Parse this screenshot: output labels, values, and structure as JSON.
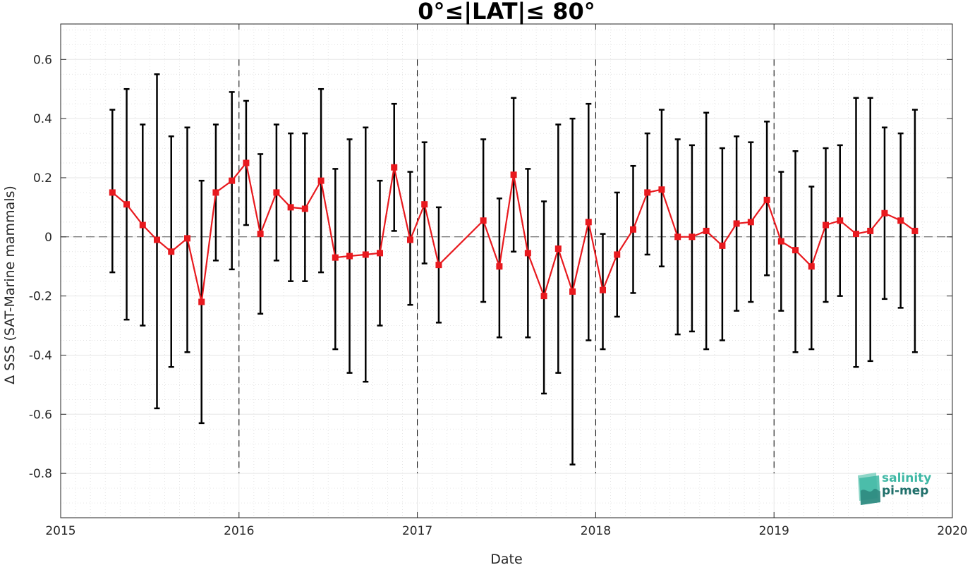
{
  "chart_data": {
    "type": "line",
    "title": "0°≤|LAT|≤ 80°",
    "xlabel": "Date",
    "ylabel": "Δ SSS (SAT-Marine mammals)",
    "xlim": [
      2015,
      2020
    ],
    "ylim": [
      -0.95,
      0.72
    ],
    "xticks": [
      2015,
      2016,
      2017,
      2018,
      2019,
      2020
    ],
    "xtick_labels": [
      "2015",
      "2016",
      "2017",
      "2018",
      "2019",
      "2020"
    ],
    "yticks": [
      0.6,
      0.4,
      0.2,
      0,
      -0.2,
      -0.4,
      -0.6,
      -0.8
    ],
    "ytick_labels": [
      "0.6",
      "0.4",
      "0.2",
      "0",
      "-0.2",
      "-0.4",
      "-0.6",
      "-0.8"
    ],
    "grid": true,
    "year_boundaries": [
      2016,
      2017,
      2018,
      2019
    ],
    "zero_line": 0,
    "series": [
      {
        "color": "#e8191e",
        "error_bar_color": "#000000",
        "marker": "square",
        "x": [
          2015.29,
          2015.37,
          2015.46,
          2015.54,
          2015.62,
          2015.71,
          2015.79,
          2015.87,
          2015.96,
          2016.04,
          2016.12,
          2016.21,
          2016.29,
          2016.37,
          2016.46,
          2016.54,
          2016.62,
          2016.71,
          2016.79,
          2016.87,
          2016.96,
          2017.04,
          2017.12,
          2017.37,
          2017.46,
          2017.54,
          2017.62,
          2017.71,
          2017.79,
          2017.87,
          2017.96,
          2018.04,
          2018.12,
          2018.21,
          2018.29,
          2018.37,
          2018.46,
          2018.54,
          2018.62,
          2018.71,
          2018.79,
          2018.87,
          2018.96,
          2019.04,
          2019.12,
          2019.21,
          2019.29,
          2019.37,
          2019.46,
          2019.54,
          2019.62,
          2019.71,
          2019.79
        ],
        "y": [
          0.15,
          0.11,
          0.04,
          -0.01,
          -0.05,
          -0.005,
          -0.22,
          0.15,
          0.19,
          0.25,
          0.01,
          0.15,
          0.1,
          0.095,
          0.19,
          -0.07,
          -0.065,
          -0.06,
          -0.055,
          0.235,
          -0.01,
          0.11,
          -0.095,
          0.055,
          -0.1,
          0.21,
          -0.055,
          -0.2,
          -0.04,
          -0.185,
          0.05,
          -0.18,
          -0.06,
          0.025,
          0.15,
          0.16,
          0.0,
          0.0,
          0.02,
          -0.03,
          0.045,
          0.05,
          0.125,
          -0.015,
          -0.045,
          -0.1,
          0.04,
          0.055,
          0.01,
          0.02,
          0.08,
          0.055,
          0.02
        ],
        "y_upper": [
          0.43,
          0.5,
          0.38,
          0.55,
          0.34,
          0.37,
          0.19,
          0.38,
          0.49,
          0.46,
          0.28,
          0.38,
          0.35,
          0.35,
          0.5,
          0.23,
          0.33,
          0.37,
          0.19,
          0.45,
          0.22,
          0.32,
          0.1,
          0.33,
          0.13,
          0.47,
          0.23,
          0.12,
          0.38,
          0.4,
          0.45,
          0.01,
          0.15,
          0.24,
          0.35,
          0.43,
          0.33,
          0.31,
          0.42,
          0.3,
          0.34,
          0.32,
          0.39,
          0.22,
          0.29,
          0.17,
          0.3,
          0.31,
          0.47,
          0.47,
          0.37,
          0.35,
          0.43
        ],
        "y_lower": [
          -0.12,
          -0.28,
          -0.3,
          -0.58,
          -0.44,
          -0.39,
          -0.63,
          -0.08,
          -0.11,
          0.04,
          -0.26,
          -0.08,
          -0.15,
          -0.15,
          -0.12,
          -0.38,
          -0.46,
          -0.49,
          -0.3,
          0.02,
          -0.23,
          -0.09,
          -0.29,
          -0.22,
          -0.34,
          -0.05,
          -0.34,
          -0.53,
          -0.46,
          -0.77,
          -0.35,
          -0.38,
          -0.27,
          -0.19,
          -0.06,
          -0.1,
          -0.33,
          -0.32,
          -0.38,
          -0.35,
          -0.25,
          -0.22,
          -0.13,
          -0.25,
          -0.39,
          -0.38,
          -0.22,
          -0.2,
          -0.44,
          -0.42,
          -0.21,
          -0.24,
          -0.39
        ]
      }
    ]
  },
  "logo": {
    "line1": "salinity",
    "line2": "pi-mep",
    "colors": [
      "#3fb8a5",
      "#1f6f6a",
      "#8fd6c8"
    ]
  }
}
